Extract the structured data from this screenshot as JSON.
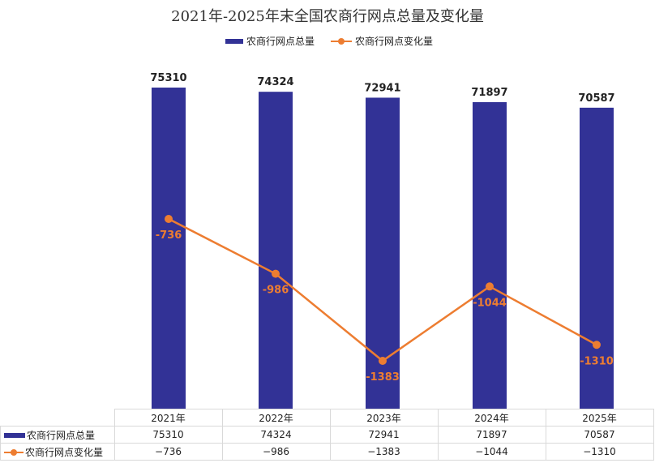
{
  "chart_data": {
    "type": "bar",
    "title": "2021年-2025年末全国农商行网点总量及变化量",
    "categories": [
      "2021年",
      "2022年",
      "2023年",
      "2024年",
      "2025年"
    ],
    "series": [
      {
        "name": "农商行网点总量",
        "type": "bar",
        "values": [
          75310,
          74324,
          72941,
          71897,
          70587
        ],
        "color": "#323296"
      },
      {
        "name": "农商行网点变化量",
        "type": "line",
        "values": [
          -736,
          -986,
          -1383,
          -1044,
          -1310
        ],
        "color": "#ed7d31"
      }
    ],
    "value_labels": {
      "bar": [
        "75310",
        "74324",
        "72941",
        "71897",
        "70587"
      ],
      "line": [
        "-736",
        "-986",
        "-1383",
        "-1044",
        "-1310"
      ]
    },
    "table": {
      "rows": [
        {
          "name": "农商行网点总量",
          "values": [
            "75310",
            "74324",
            "72941",
            "71897",
            "70587"
          ]
        },
        {
          "name": "农商行网点变化量",
          "values": [
            "−736",
            "−986",
            "−1383",
            "−1044",
            "−1310"
          ]
        }
      ]
    },
    "legend_position": "top-center",
    "grid": false
  }
}
